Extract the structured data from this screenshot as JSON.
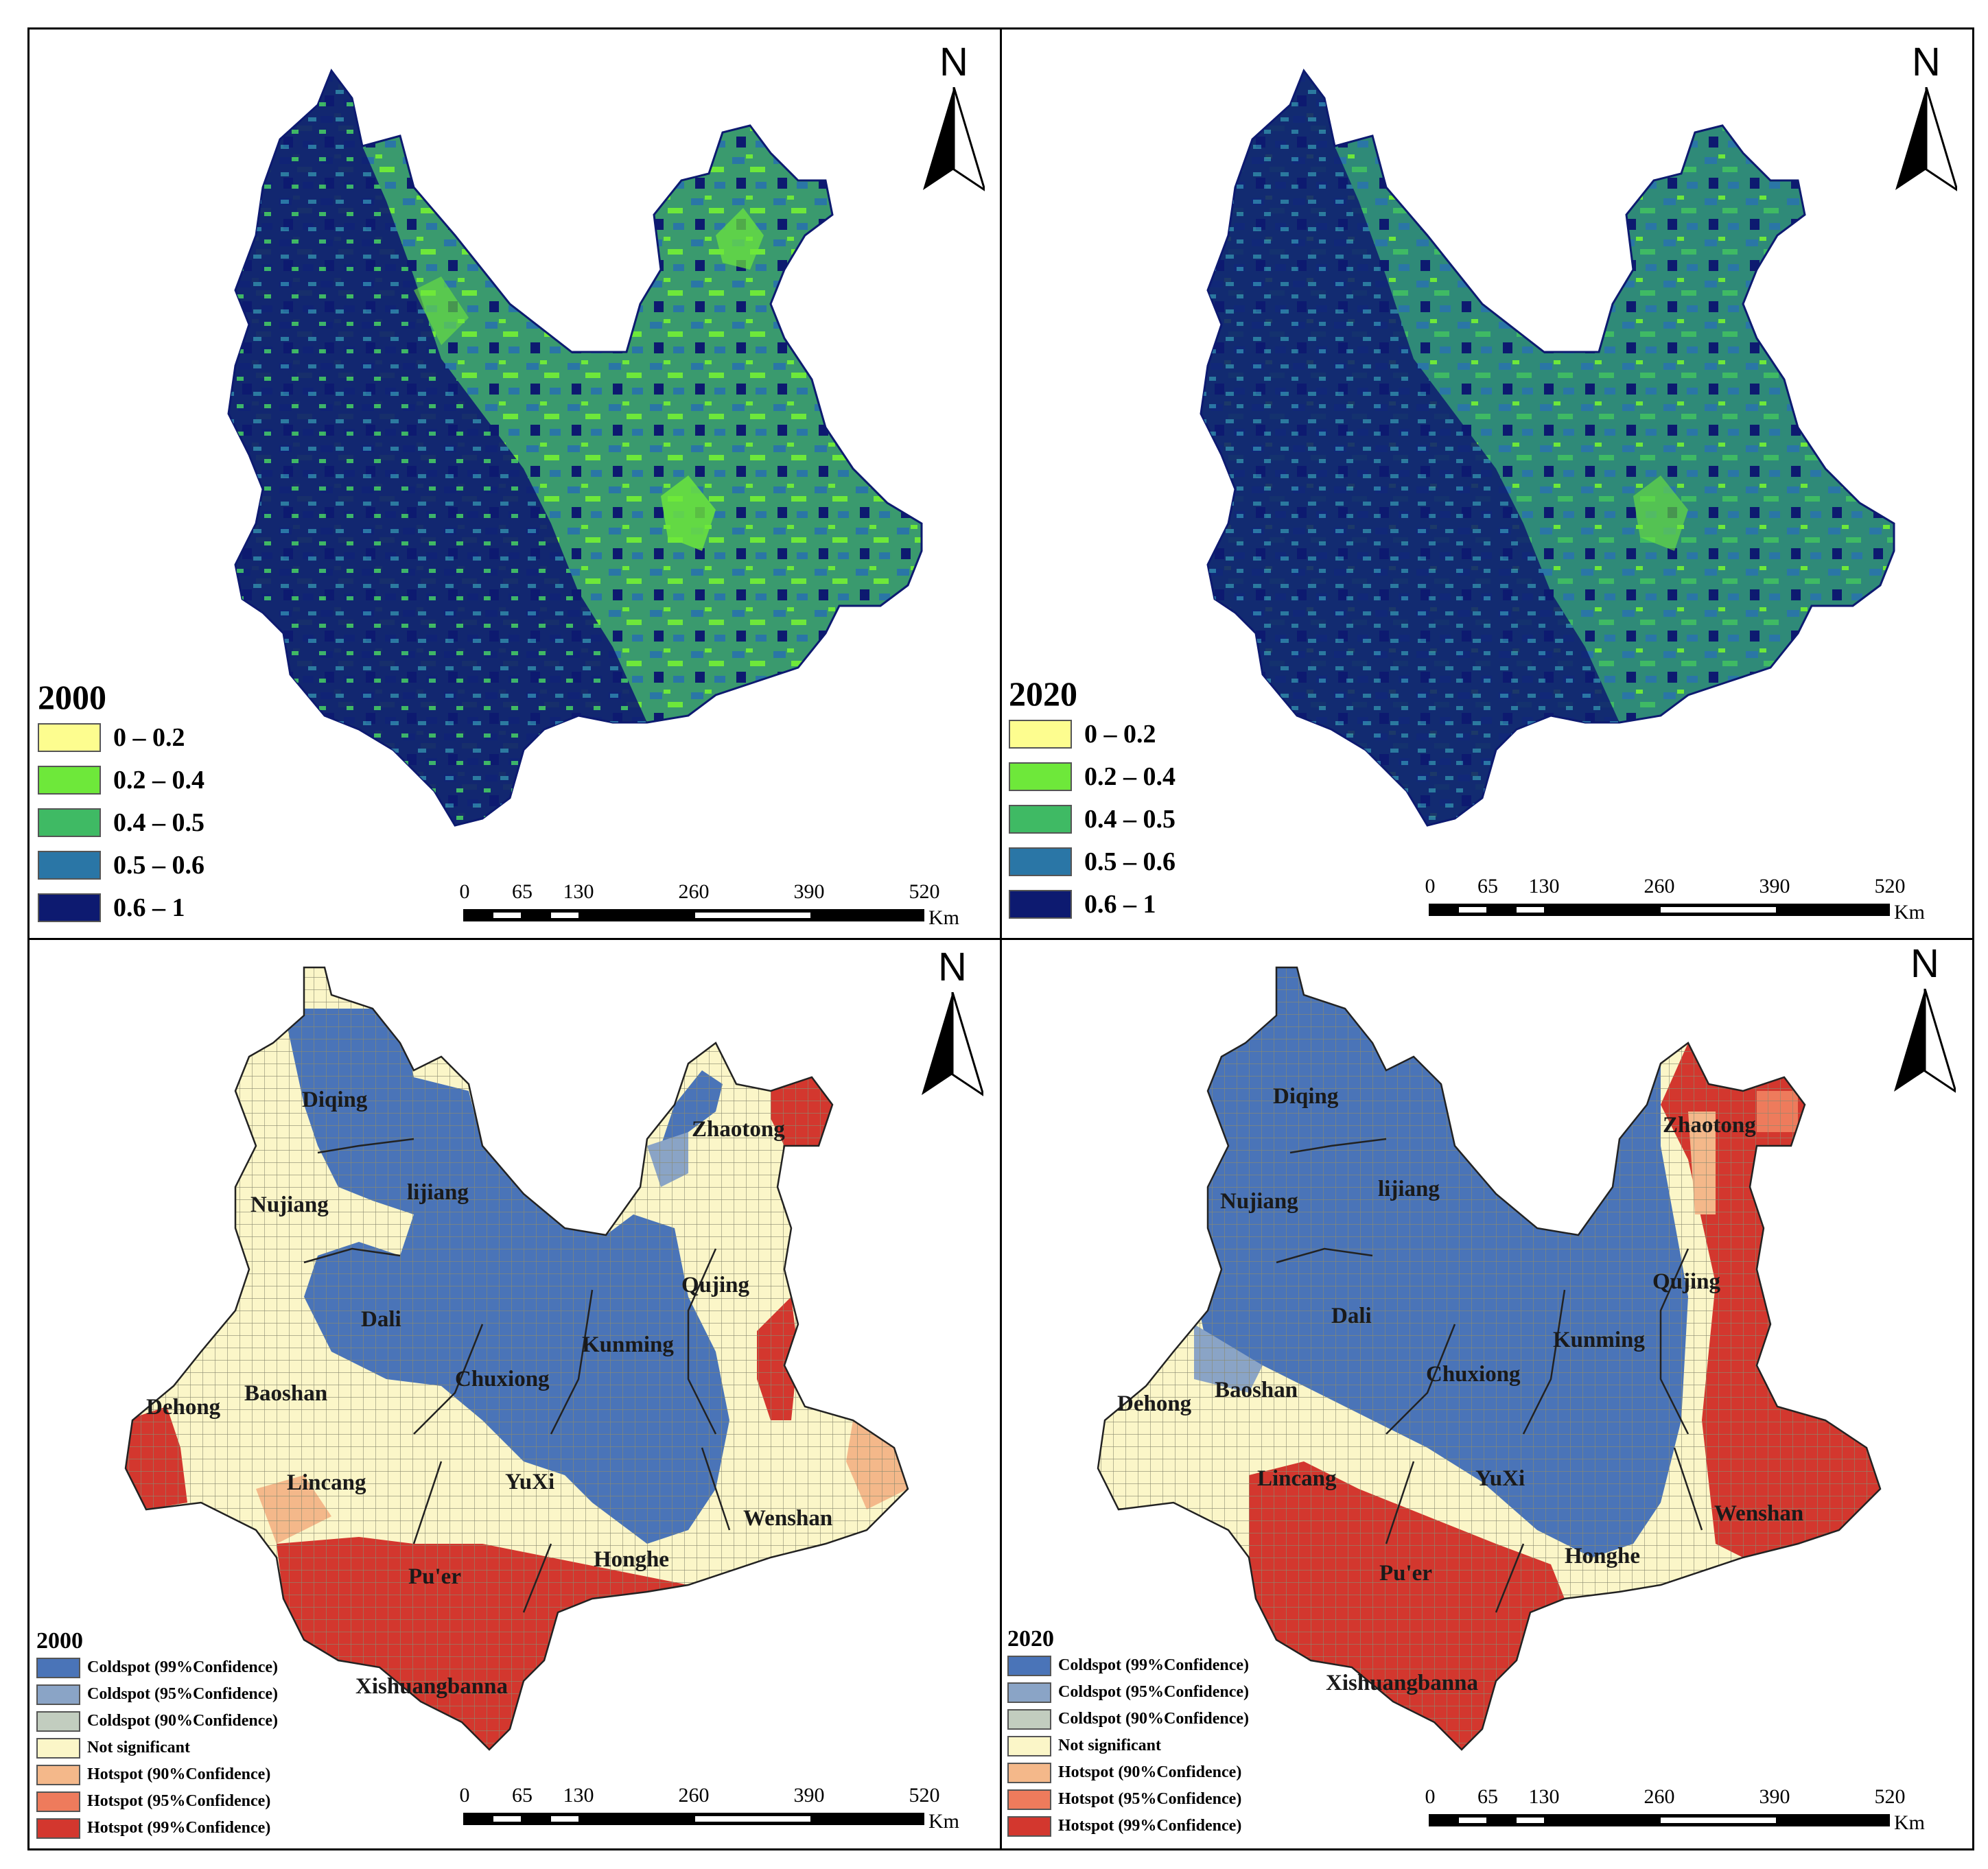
{
  "panels": [
    {
      "id": "es-2000",
      "year": "2000"
    },
    {
      "id": "es-2020",
      "year": "2020"
    },
    {
      "id": "hot-2000",
      "year": "2000"
    },
    {
      "id": "hot-2020",
      "year": "2020"
    }
  ],
  "north_label": "N",
  "value_legend": {
    "items": [
      {
        "label": "0 – 0.2",
        "color": "#fdfd8f"
      },
      {
        "label": "0.2 – 0.4",
        "color": "#6ee83a"
      },
      {
        "label": "0.4 – 0.5",
        "color": "#3fba64"
      },
      {
        "label": "0.5 – 0.6",
        "color": "#2a76a6"
      },
      {
        "label": "0.6 – 1",
        "color": "#0d1a70"
      }
    ]
  },
  "hotspot_legend": {
    "items": [
      {
        "label": "Coldspot (99%Confidence)",
        "color": "#4a74b8"
      },
      {
        "label": "Coldspot (95%Confidence)",
        "color": "#8aa4c6"
      },
      {
        "label": "Coldspot (90%Confidence)",
        "color": "#c2cdbf"
      },
      {
        "label": "Not significant",
        "color": "#fbf6c8"
      },
      {
        "label": "Hotspot (90%Confidence)",
        "color": "#f4b88a"
      },
      {
        "label": "Hotspot (95%Confidence)",
        "color": "#ee7b5c"
      },
      {
        "label": "Hotspot (99%Confidence)",
        "color": "#d3372e"
      }
    ]
  },
  "scale": {
    "ticks": [
      "0",
      "65",
      "130",
      "260",
      "390",
      "520"
    ],
    "unit": "Km"
  },
  "cities": [
    "Diqing",
    "Zhaotong",
    "lijiang",
    "Nujiang",
    "Qujing",
    "Dali",
    "Kunming",
    "Chuxiong",
    "Baoshan",
    "Dehong",
    "Lincang",
    "YuXi",
    "Wenshan",
    "Honghe",
    "Pu'er",
    "Xishuangbanna"
  ]
}
